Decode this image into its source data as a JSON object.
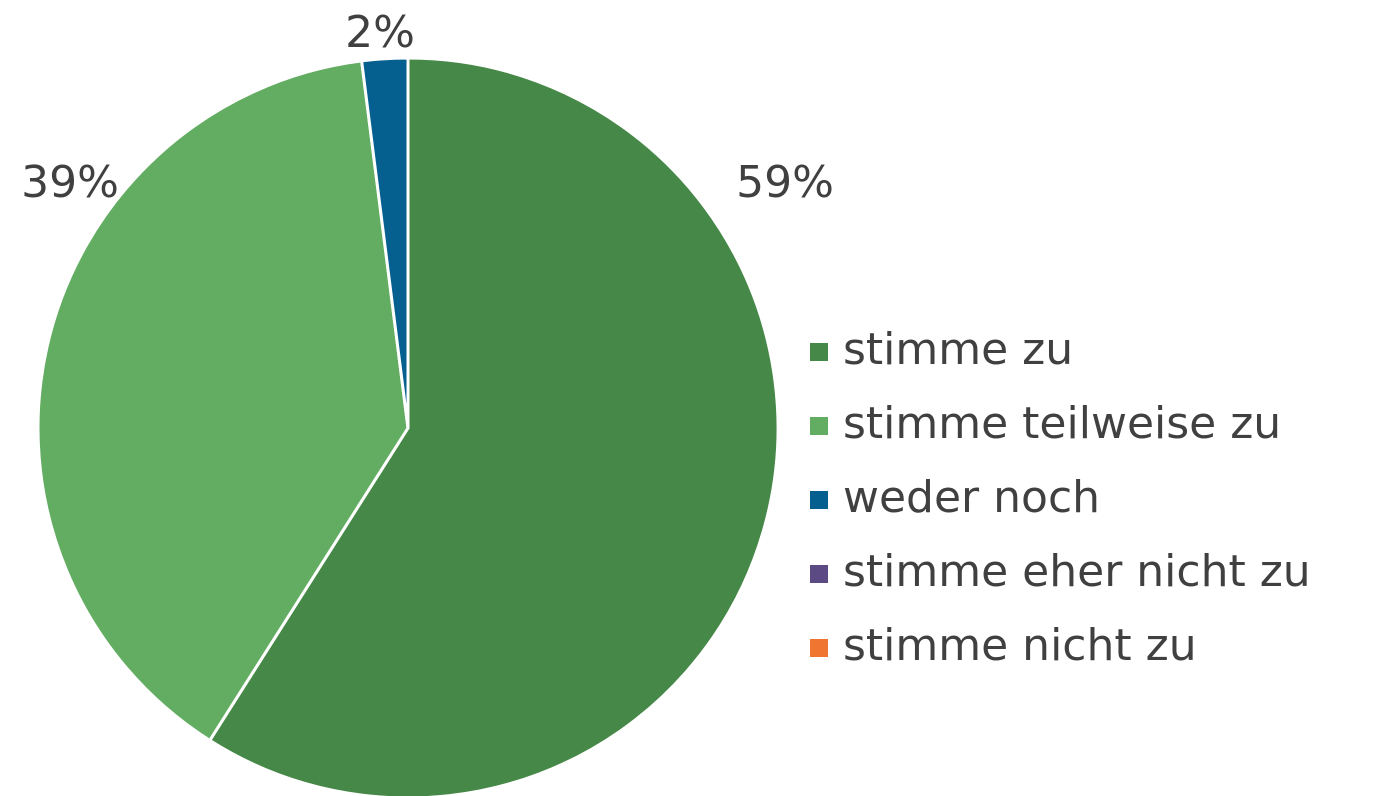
{
  "chart_data": {
    "type": "pie",
    "categories": [
      "stimme zu",
      "stimme teilweise zu",
      "weder noch",
      "stimme eher nicht zu",
      "stimme nicht zu"
    ],
    "values": [
      59,
      39,
      2,
      0,
      0
    ],
    "value_labels": [
      "59%",
      "39%",
      "2%",
      null,
      null
    ],
    "colors": [
      "#468847",
      "#63ad63",
      "#055f8f",
      "#5b4a83",
      "#ef7531"
    ],
    "legend": "right"
  }
}
